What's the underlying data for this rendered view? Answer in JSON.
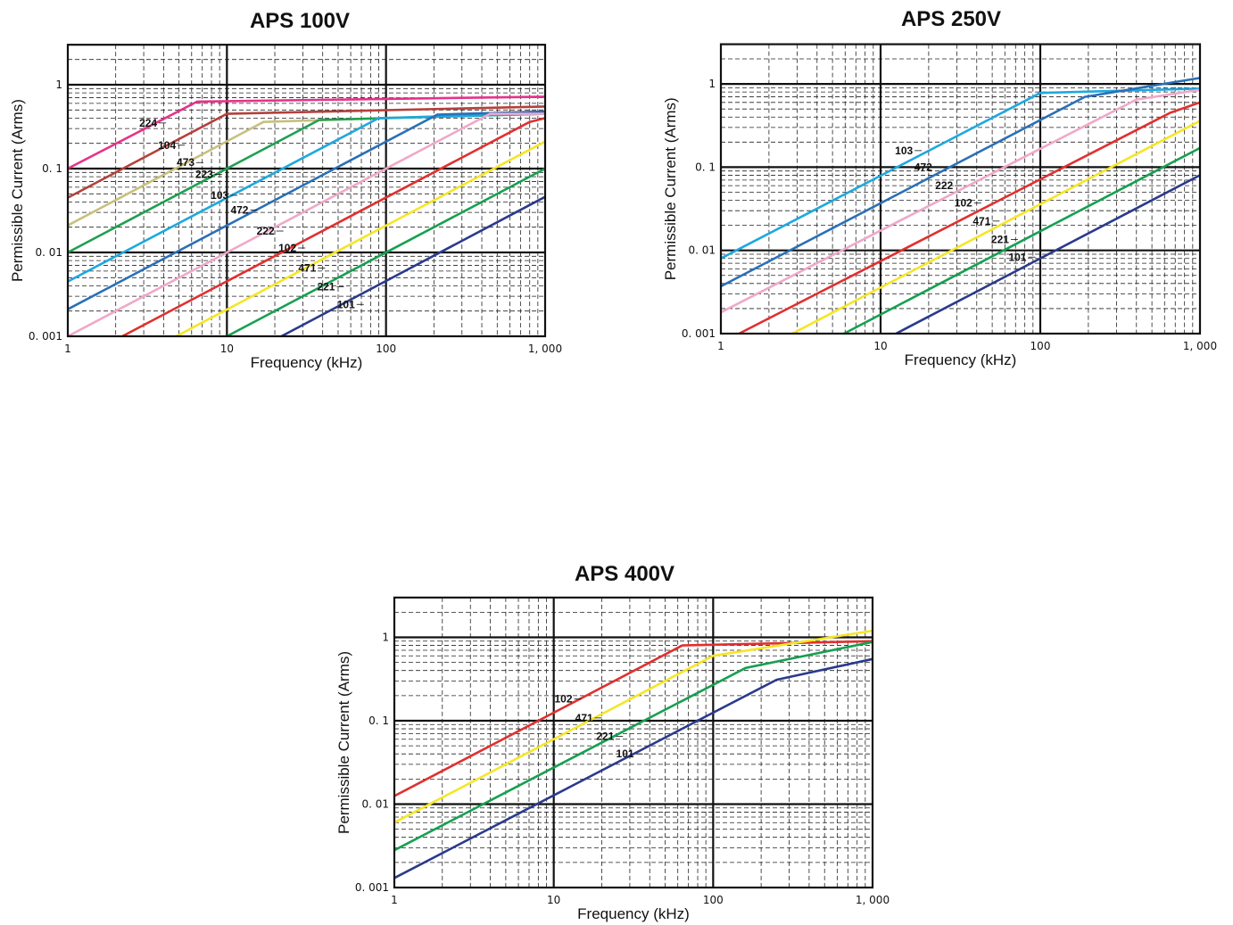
{
  "chart_data": [
    {
      "type": "line",
      "title": "APS 100V",
      "xlabel": "Frequency (kHz)",
      "ylabel": "Permissible Current (Arms)",
      "xscale": "log",
      "yscale": "log",
      "xlim": [
        1,
        1000
      ],
      "ylim": [
        0.001,
        3
      ],
      "x_tick_labels": [
        "1",
        "10",
        "100",
        "1, 000"
      ],
      "y_tick_labels": [
        "0. 001",
        "0. 01",
        "0. 1",
        "1"
      ],
      "grid": true,
      "series": [
        {
          "name": "224",
          "color": "#e8318a",
          "x": [
            1,
            6.5,
            1000
          ],
          "y": [
            0.1,
            0.63,
            0.72
          ]
        },
        {
          "name": "104",
          "color": "#b5403a",
          "x": [
            1,
            10,
            1000
          ],
          "y": [
            0.045,
            0.45,
            0.55
          ]
        },
        {
          "name": "473",
          "color": "#c8c07e",
          "x": [
            1,
            17,
            1000
          ],
          "y": [
            0.021,
            0.36,
            0.46
          ]
        },
        {
          "name": "223",
          "color": "#1ea050",
          "x": [
            1,
            38,
            1000
          ],
          "y": [
            0.01,
            0.38,
            0.45
          ]
        },
        {
          "name": "103",
          "color": "#1ea8e0",
          "x": [
            1,
            90,
            1000
          ],
          "y": [
            0.0045,
            0.4,
            0.45
          ]
        },
        {
          "name": "472",
          "color": "#2a6fb8",
          "x": [
            1,
            210,
            1000
          ],
          "y": [
            0.0021,
            0.44,
            0.48
          ]
        },
        {
          "name": "222",
          "color": "#f0a8c8",
          "x": [
            1,
            450,
            1000
          ],
          "y": [
            0.001,
            0.45,
            0.45
          ]
        },
        {
          "name": "102",
          "color": "#e03030",
          "x": [
            2.2,
            800,
            1000
          ],
          "y": [
            0.001,
            0.36,
            0.4
          ]
        },
        {
          "name": "471",
          "color": "#f5e626",
          "x": [
            4.8,
            1000
          ],
          "y": [
            0.001,
            0.21
          ]
        },
        {
          "name": "221",
          "color": "#16a050",
          "x": [
            10,
            1000
          ],
          "y": [
            0.001,
            0.1
          ]
        },
        {
          "name": "101",
          "color": "#2a3a8c",
          "x": [
            22,
            1000
          ],
          "y": [
            0.001,
            0.046
          ]
        }
      ],
      "labels": [
        {
          "text": "224",
          "x": 3.2,
          "y": 0.35
        },
        {
          "text": "104",
          "x": 4.2,
          "y": 0.19
        },
        {
          "text": "473",
          "x": 5.5,
          "y": 0.118
        },
        {
          "text": "223",
          "x": 7.2,
          "y": 0.085
        },
        {
          "text": "103",
          "x": 9.0,
          "y": 0.048
        },
        {
          "text": "472",
          "x": 12.0,
          "y": 0.032
        },
        {
          "text": "222",
          "x": 17.5,
          "y": 0.018
        },
        {
          "text": "102",
          "x": 24.0,
          "y": 0.0113
        },
        {
          "text": "471",
          "x": 32.0,
          "y": 0.0065
        },
        {
          "text": "221",
          "x": 42.0,
          "y": 0.0039
        },
        {
          "text": "101",
          "x": 56.0,
          "y": 0.0024
        }
      ]
    },
    {
      "type": "line",
      "title": "APS 250V",
      "xlabel": "Frequency (kHz)",
      "ylabel": "Permissible Current (Arms)",
      "xscale": "log",
      "yscale": "log",
      "xlim": [
        1,
        1000
      ],
      "ylim": [
        0.001,
        3
      ],
      "x_tick_labels": [
        "1",
        "10",
        "100",
        "1, 000"
      ],
      "y_tick_labels": [
        "0. 001",
        "0. 01",
        "0. 1",
        "1"
      ],
      "grid": true,
      "series": [
        {
          "name": "103",
          "color": "#1ea8e0",
          "x": [
            1,
            100,
            1000
          ],
          "y": [
            0.008,
            0.78,
            0.88
          ]
        },
        {
          "name": "472",
          "color": "#2a6fb8",
          "x": [
            1,
            190,
            1000
          ],
          "y": [
            0.0037,
            0.7,
            1.18
          ]
        },
        {
          "name": "222",
          "color": "#f0a8c8",
          "x": [
            1,
            400,
            1000
          ],
          "y": [
            0.0018,
            0.65,
            0.85
          ]
        },
        {
          "name": "102",
          "color": "#e03030",
          "x": [
            1.3,
            650,
            1000
          ],
          "y": [
            0.001,
            0.45,
            0.6
          ]
        },
        {
          "name": "471",
          "color": "#f5e626",
          "x": [
            2.8,
            1000
          ],
          "y": [
            0.001,
            0.36
          ]
        },
        {
          "name": "221",
          "color": "#16a050",
          "x": [
            5.9,
            1000
          ],
          "y": [
            0.001,
            0.17
          ]
        },
        {
          "name": "101",
          "color": "#2a3a8c",
          "x": [
            12.5,
            1000
          ],
          "y": [
            0.001,
            0.08
          ]
        }
      ],
      "labels": [
        {
          "text": "103",
          "x": 14.0,
          "y": 0.158
        },
        {
          "text": "472",
          "x": 18.5,
          "y": 0.1
        },
        {
          "text": "222",
          "x": 25.0,
          "y": 0.06
        },
        {
          "text": "102",
          "x": 33.0,
          "y": 0.037
        },
        {
          "text": "471",
          "x": 43.0,
          "y": 0.0225
        },
        {
          "text": "221",
          "x": 56.0,
          "y": 0.0135
        },
        {
          "text": "101",
          "x": 72.0,
          "y": 0.0083
        }
      ]
    },
    {
      "type": "line",
      "title": "APS 400V",
      "xlabel": "Frequency (kHz)",
      "ylabel": "Permissible Current (Arms)",
      "xscale": "log",
      "yscale": "log",
      "xlim": [
        1,
        1000
      ],
      "ylim": [
        0.001,
        3
      ],
      "x_tick_labels": [
        "1",
        "10",
        "100",
        "1, 000"
      ],
      "y_tick_labels": [
        "0. 001",
        "0. 01",
        "0. 1",
        "1"
      ],
      "grid": true,
      "series": [
        {
          "name": "102",
          "color": "#e03030",
          "x": [
            1,
            64,
            1000
          ],
          "y": [
            0.0125,
            0.8,
            0.9
          ]
        },
        {
          "name": "471",
          "color": "#f5e626",
          "x": [
            1,
            100,
            1000
          ],
          "y": [
            0.006,
            0.6,
            1.2
          ]
        },
        {
          "name": "221",
          "color": "#16a050",
          "x": [
            1,
            160,
            1000
          ],
          "y": [
            0.0028,
            0.43,
            0.88
          ]
        },
        {
          "name": "101",
          "color": "#2a3a8c",
          "x": [
            1,
            250,
            1000
          ],
          "y": [
            0.0013,
            0.31,
            0.55
          ]
        }
      ],
      "labels": [
        {
          "text": "102",
          "x": 11.5,
          "y": 0.182
        },
        {
          "text": "471",
          "x": 15.5,
          "y": 0.108
        },
        {
          "text": "221",
          "x": 21.0,
          "y": 0.065
        },
        {
          "text": "101",
          "x": 28.0,
          "y": 0.04
        }
      ]
    }
  ]
}
